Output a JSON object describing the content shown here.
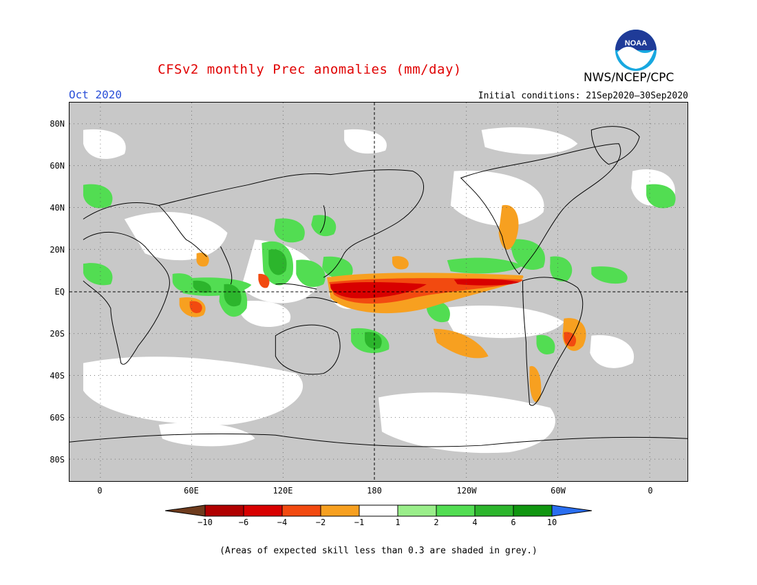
{
  "header": {
    "title": "CFSv2 monthly Prec anomalies (mm/day)",
    "month": "Oct 2020",
    "initial_conditions": "Initial conditions: 21Sep2020–30Sep2020",
    "agency": "NWS/NCEP/CPC",
    "logo_text": "NOAA"
  },
  "map": {
    "lat_labels": [
      "80N",
      "60N",
      "40N",
      "20N",
      "EQ",
      "20S",
      "40S",
      "60S",
      "80S"
    ],
    "lon_labels": [
      "0",
      "60E",
      "120E",
      "180",
      "120W",
      "60W",
      "0"
    ]
  },
  "colorbar": {
    "ticks": [
      "−10",
      "−6",
      "−4",
      "−2",
      "−1",
      "1",
      "2",
      "4",
      "6",
      "10"
    ],
    "colors": [
      "#6e3b1d",
      "#b00000",
      "#d80000",
      "#f24a10",
      "#f7a020",
      "#ffffff",
      "#9aee8a",
      "#52dd52",
      "#2cb52c",
      "#109610",
      "#2a6ef0"
    ]
  },
  "colors": {
    "grey_low_skill": "#c8c8c8",
    "title_red": "#e00000",
    "month_blue": "#2a4fd8"
  },
  "footnote": "(Areas of expected skill less than 0.3 are shaded in grey.)"
}
